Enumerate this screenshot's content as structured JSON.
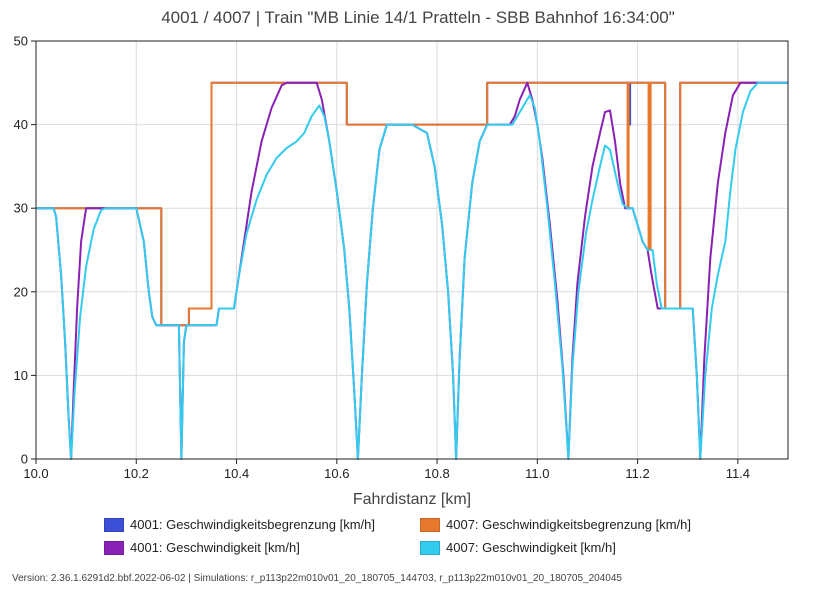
{
  "chart_data": {
    "type": "line",
    "title": "4001 / 4007 | Train \"MB Linie 14/1 Pratteln - SBB Bahnhof 16:34:00\"",
    "xlabel": "Fahrdistanz [km]",
    "ylabel": "",
    "xlim": [
      10.0,
      11.5
    ],
    "ylim": [
      0,
      50
    ],
    "xticks": [
      "10.0",
      "10.2",
      "10.4",
      "10.6",
      "10.8",
      "11.0",
      "11.2",
      "11.4"
    ],
    "yticks": [
      "0",
      "10",
      "20",
      "30",
      "40",
      "50"
    ],
    "grid": true,
    "legend_position": "bottom",
    "series": [
      {
        "name": "4001: Geschwindigkeitsbegrenzung [km/h]",
        "color": "#3b4fd8",
        "step": true,
        "points": [
          [
            10.0,
            30
          ],
          [
            10.25,
            30
          ],
          [
            10.25,
            16
          ],
          [
            10.305,
            16
          ],
          [
            10.305,
            18
          ],
          [
            10.35,
            18
          ],
          [
            10.35,
            45
          ],
          [
            10.62,
            45
          ],
          [
            10.62,
            40
          ],
          [
            10.9,
            40
          ],
          [
            10.9,
            45
          ],
          [
            11.185,
            45
          ],
          [
            11.185,
            40
          ],
          [
            11.185,
            45
          ],
          [
            11.225,
            45
          ],
          [
            11.225,
            40
          ],
          [
            11.225,
            45
          ],
          [
            11.255,
            45
          ],
          [
            11.255,
            18
          ],
          [
            11.285,
            18
          ],
          [
            11.285,
            45
          ],
          [
            11.5,
            45
          ]
        ]
      },
      {
        "name": "4007: Geschwindigkeitsbegrenzung [km/h]",
        "color": "#e8782d",
        "step": true,
        "points": [
          [
            10.0,
            30
          ],
          [
            10.25,
            30
          ],
          [
            10.25,
            16
          ],
          [
            10.305,
            16
          ],
          [
            10.305,
            18
          ],
          [
            10.35,
            18
          ],
          [
            10.35,
            45
          ],
          [
            10.62,
            45
          ],
          [
            10.62,
            40
          ],
          [
            10.9,
            40
          ],
          [
            10.9,
            45
          ],
          [
            11.18,
            45
          ],
          [
            11.18,
            30
          ],
          [
            11.18,
            45
          ],
          [
            11.182,
            45
          ],
          [
            11.182,
            30
          ],
          [
            11.182,
            45
          ],
          [
            11.222,
            45
          ],
          [
            11.222,
            25
          ],
          [
            11.222,
            45
          ],
          [
            11.226,
            45
          ],
          [
            11.226,
            25
          ],
          [
            11.226,
            45
          ],
          [
            11.255,
            45
          ],
          [
            11.255,
            18
          ],
          [
            11.285,
            18
          ],
          [
            11.285,
            45
          ],
          [
            11.5,
            45
          ]
        ]
      },
      {
        "name": "4001: Geschwindigkeit [km/h]",
        "color": "#8a21b5",
        "step": false,
        "points": [
          [
            10.0,
            30
          ],
          [
            10.035,
            30
          ],
          [
            10.04,
            29
          ],
          [
            10.05,
            22
          ],
          [
            10.058,
            14
          ],
          [
            10.065,
            5
          ],
          [
            10.07,
            0
          ],
          [
            10.075,
            8
          ],
          [
            10.082,
            18
          ],
          [
            10.09,
            26
          ],
          [
            10.1,
            30
          ],
          [
            10.13,
            30
          ],
          [
            10.2,
            30
          ],
          [
            10.215,
            26
          ],
          [
            10.225,
            20
          ],
          [
            10.232,
            17
          ],
          [
            10.24,
            16
          ],
          [
            10.285,
            16
          ],
          [
            10.29,
            0
          ],
          [
            10.295,
            14
          ],
          [
            10.3,
            16
          ],
          [
            10.36,
            16
          ],
          [
            10.365,
            18
          ],
          [
            10.395,
            18
          ],
          [
            10.41,
            24
          ],
          [
            10.43,
            32
          ],
          [
            10.45,
            38
          ],
          [
            10.47,
            42
          ],
          [
            10.49,
            44.7
          ],
          [
            10.5,
            45
          ],
          [
            10.56,
            45
          ],
          [
            10.57,
            43
          ],
          [
            10.585,
            38
          ],
          [
            10.6,
            32
          ],
          [
            10.615,
            25
          ],
          [
            10.625,
            18
          ],
          [
            10.635,
            8
          ],
          [
            10.642,
            0
          ],
          [
            10.65,
            10
          ],
          [
            10.66,
            21
          ],
          [
            10.672,
            30
          ],
          [
            10.685,
            37
          ],
          [
            10.7,
            40
          ],
          [
            10.75,
            40
          ],
          [
            10.78,
            39
          ],
          [
            10.795,
            35
          ],
          [
            10.81,
            28
          ],
          [
            10.822,
            20
          ],
          [
            10.832,
            10
          ],
          [
            10.838,
            0
          ],
          [
            10.845,
            12
          ],
          [
            10.855,
            24
          ],
          [
            10.87,
            33
          ],
          [
            10.885,
            38
          ],
          [
            10.9,
            40
          ],
          [
            10.945,
            40
          ],
          [
            10.955,
            41
          ],
          [
            10.965,
            43
          ],
          [
            10.98,
            45
          ],
          [
            10.99,
            43
          ],
          [
            11.0,
            40
          ],
          [
            11.01,
            36
          ],
          [
            11.025,
            28
          ],
          [
            11.04,
            19
          ],
          [
            11.052,
            10
          ],
          [
            11.062,
            0
          ],
          [
            11.07,
            12
          ],
          [
            11.08,
            21
          ],
          [
            11.095,
            29
          ],
          [
            11.11,
            35
          ],
          [
            11.125,
            39
          ],
          [
            11.135,
            41.5
          ],
          [
            11.145,
            41.7
          ],
          [
            11.155,
            38
          ],
          [
            11.165,
            33
          ],
          [
            11.175,
            30
          ],
          [
            11.18,
            30
          ],
          [
            11.19,
            30
          ],
          [
            11.2,
            28
          ],
          [
            11.21,
            26
          ],
          [
            11.22,
            25
          ],
          [
            11.228,
            22
          ],
          [
            11.24,
            18
          ],
          [
            11.25,
            18
          ],
          [
            11.31,
            18
          ],
          [
            11.318,
            10
          ],
          [
            11.325,
            0
          ],
          [
            11.333,
            12
          ],
          [
            11.345,
            24
          ],
          [
            11.36,
            33
          ],
          [
            11.375,
            39
          ],
          [
            11.39,
            43.5
          ],
          [
            11.405,
            45
          ],
          [
            11.5,
            45
          ]
        ]
      },
      {
        "name": "4007: Geschwindigkeit [km/h]",
        "color": "#33cbee",
        "step": false,
        "points": [
          [
            10.0,
            30
          ],
          [
            10.035,
            30
          ],
          [
            10.04,
            29
          ],
          [
            10.05,
            22
          ],
          [
            10.058,
            14
          ],
          [
            10.065,
            5
          ],
          [
            10.07,
            0
          ],
          [
            10.077,
            8
          ],
          [
            10.088,
            17
          ],
          [
            10.1,
            23
          ],
          [
            10.115,
            27.5
          ],
          [
            10.13,
            29.8
          ],
          [
            10.14,
            30
          ],
          [
            10.2,
            30
          ],
          [
            10.215,
            26
          ],
          [
            10.225,
            20
          ],
          [
            10.232,
            17
          ],
          [
            10.24,
            16
          ],
          [
            10.285,
            16
          ],
          [
            10.29,
            0
          ],
          [
            10.295,
            14
          ],
          [
            10.3,
            16
          ],
          [
            10.36,
            16
          ],
          [
            10.365,
            18
          ],
          [
            10.395,
            18
          ],
          [
            10.405,
            22
          ],
          [
            10.42,
            27
          ],
          [
            10.44,
            31
          ],
          [
            10.46,
            34
          ],
          [
            10.48,
            36
          ],
          [
            10.5,
            37.2
          ],
          [
            10.52,
            38
          ],
          [
            10.535,
            39
          ],
          [
            10.55,
            41
          ],
          [
            10.565,
            42.3
          ],
          [
            10.575,
            41
          ],
          [
            10.585,
            38
          ],
          [
            10.6,
            32
          ],
          [
            10.615,
            25
          ],
          [
            10.625,
            18
          ],
          [
            10.635,
            8
          ],
          [
            10.642,
            0
          ],
          [
            10.65,
            10
          ],
          [
            10.66,
            21
          ],
          [
            10.672,
            30
          ],
          [
            10.685,
            37
          ],
          [
            10.7,
            40
          ],
          [
            10.75,
            40
          ],
          [
            10.78,
            39
          ],
          [
            10.795,
            35
          ],
          [
            10.81,
            28
          ],
          [
            10.822,
            20
          ],
          [
            10.832,
            10
          ],
          [
            10.838,
            0
          ],
          [
            10.845,
            12
          ],
          [
            10.855,
            24
          ],
          [
            10.87,
            33
          ],
          [
            10.885,
            38
          ],
          [
            10.9,
            40
          ],
          [
            10.95,
            40
          ],
          [
            10.96,
            41
          ],
          [
            10.975,
            42.5
          ],
          [
            10.985,
            43.5
          ],
          [
            10.995,
            42
          ],
          [
            11.005,
            38
          ],
          [
            11.02,
            30
          ],
          [
            11.035,
            21
          ],
          [
            11.05,
            11
          ],
          [
            11.062,
            0
          ],
          [
            11.07,
            11
          ],
          [
            11.082,
            20
          ],
          [
            11.097,
            27
          ],
          [
            11.11,
            31
          ],
          [
            11.125,
            35
          ],
          [
            11.135,
            37.5
          ],
          [
            11.145,
            37
          ],
          [
            11.16,
            33
          ],
          [
            11.17,
            30.5
          ],
          [
            11.18,
            30
          ],
          [
            11.19,
            30
          ],
          [
            11.2,
            28
          ],
          [
            11.21,
            26
          ],
          [
            11.22,
            25
          ],
          [
            11.23,
            25
          ],
          [
            11.238,
            21
          ],
          [
            11.248,
            18
          ],
          [
            11.31,
            18
          ],
          [
            11.318,
            10
          ],
          [
            11.325,
            0
          ],
          [
            11.335,
            10
          ],
          [
            11.348,
            18
          ],
          [
            11.36,
            22
          ],
          [
            11.375,
            26
          ],
          [
            11.385,
            32
          ],
          [
            11.395,
            37
          ],
          [
            11.41,
            41.5
          ],
          [
            11.425,
            44
          ],
          [
            11.44,
            45
          ],
          [
            11.5,
            45
          ]
        ]
      }
    ]
  },
  "footer": "Version: 2.36.1.6291d2.bbf.2022-06-02 | Simulations: r_p113p22m010v01_20_180705_144703, r_p113p22m010v01_20_180705_204045"
}
